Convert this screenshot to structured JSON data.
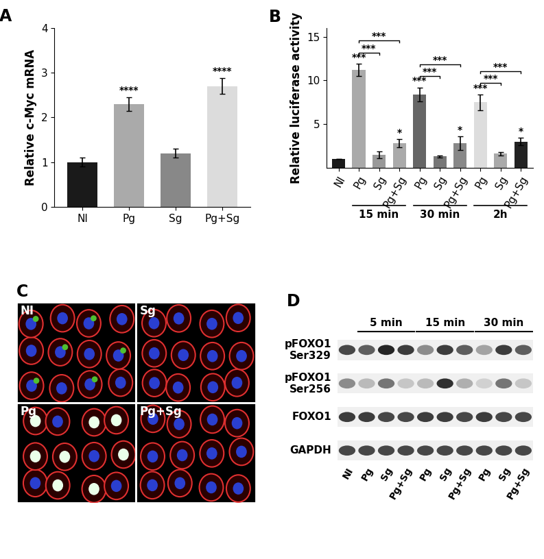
{
  "chart_data": [
    {
      "type": "bar",
      "title": "A",
      "categories": [
        "NI",
        "Pg",
        "Sg",
        "Pg+Sg"
      ],
      "values": [
        1.0,
        2.3,
        1.2,
        2.7
      ],
      "errors": [
        0.1,
        0.15,
        0.1,
        0.18
      ],
      "colors": [
        "#1a1a1a",
        "#aaaaaa",
        "#888888",
        "#dcdcdc"
      ],
      "ylabel": "Relative c-Myc mRNA",
      "ylim": [
        0,
        4
      ],
      "yticks": [
        0,
        1,
        2,
        3,
        4
      ],
      "significance": [
        null,
        "****",
        null,
        "****"
      ]
    },
    {
      "type": "bar",
      "title": "B",
      "categories": [
        "NI",
        "Pg",
        "Sg",
        "Pg+Sg",
        "Pg",
        "Sg",
        "Pg+Sg",
        "Pg",
        "Sg",
        "Pg+Sg"
      ],
      "values": [
        1.0,
        11.2,
        1.5,
        2.8,
        8.4,
        1.3,
        2.8,
        7.5,
        1.6,
        3.0
      ],
      "errors": [
        0.0,
        0.7,
        0.4,
        0.5,
        0.8,
        0.1,
        0.8,
        0.9,
        0.2,
        0.4
      ],
      "colors": [
        "#1a1a1a",
        "#aaaaaa",
        "#999999",
        "#aaaaaa",
        "#666666",
        "#777777",
        "#888888",
        "#dddddd",
        "#aaaaaa",
        "#222222"
      ],
      "ylabel": "Relative luciferase activity",
      "ylim": [
        0,
        16
      ],
      "yticks": [
        5,
        10,
        15
      ],
      "significance": [
        null,
        "***",
        null,
        "*",
        "***",
        null,
        "*",
        "***",
        null,
        "*"
      ],
      "comparisons": [
        {
          "from": 1,
          "to": 2,
          "label": "***"
        },
        {
          "from": 1,
          "to": 3,
          "label": "***"
        },
        {
          "from": 4,
          "to": 5,
          "label": "***"
        },
        {
          "from": 4,
          "to": 6,
          "label": "***"
        },
        {
          "from": 7,
          "to": 8,
          "label": "***"
        },
        {
          "from": 7,
          "to": 9,
          "label": "***"
        }
      ],
      "groups": [
        {
          "label": "15 min",
          "start": 1,
          "end": 3
        },
        {
          "label": "30 min",
          "start": 4,
          "end": 6
        },
        {
          "label": "2h",
          "start": 7,
          "end": 9
        }
      ]
    }
  ],
  "microscopy": {
    "title": "C",
    "panel_labels": [
      "NI",
      "Sg",
      "Pg",
      "Pg+Sg"
    ]
  },
  "western_blot": {
    "title": "D",
    "lanes": [
      "NI",
      "Pg",
      "Sg",
      "Pg+Sg",
      "Pg",
      "Sg",
      "Pg+Sg",
      "Pg",
      "Sg",
      "Pg+Sg"
    ],
    "time_groups": [
      {
        "label": "5 min",
        "start": 1,
        "end": 3
      },
      {
        "label": "15 min",
        "start": 4,
        "end": 6
      },
      {
        "label": "30 min",
        "start": 7,
        "end": 9
      }
    ],
    "rows": [
      {
        "label": "pFOXO1\nSer329",
        "intensities": [
          0.8,
          0.7,
          0.95,
          0.85,
          0.5,
          0.85,
          0.7,
          0.4,
          0.85,
          0.7
        ]
      },
      {
        "label": "pFOXO1\nSer256",
        "intensities": [
          0.5,
          0.3,
          0.6,
          0.25,
          0.3,
          0.9,
          0.35,
          0.2,
          0.6,
          0.25
        ]
      },
      {
        "label": "FOXO1",
        "intensities": [
          0.85,
          0.85,
          0.8,
          0.8,
          0.85,
          0.85,
          0.8,
          0.85,
          0.8,
          0.8
        ]
      },
      {
        "label": "GAPDH",
        "intensities": [
          0.8,
          0.8,
          0.8,
          0.8,
          0.8,
          0.8,
          0.8,
          0.8,
          0.8,
          0.8
        ]
      }
    ]
  }
}
